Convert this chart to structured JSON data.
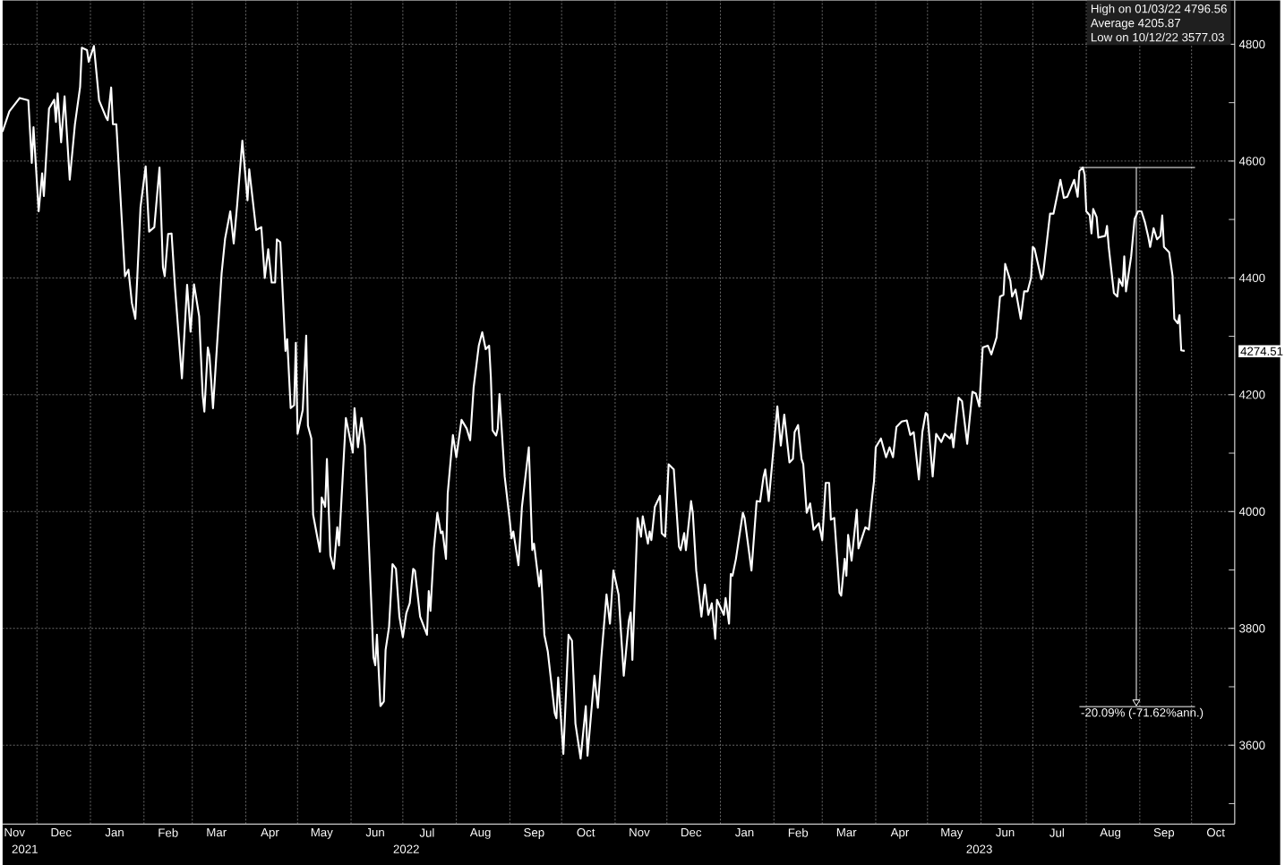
{
  "chart_data": {
    "type": "line",
    "x": [
      "2021-11-11",
      "2021-11-15",
      "2021-11-21",
      "2021-11-26",
      "2021-11-28",
      "2021-11-29",
      "2021-12-02",
      "2021-12-04",
      "2021-12-05",
      "2021-12-08",
      "2021-12-11",
      "2021-12-12",
      "2021-12-13",
      "2021-12-15",
      "2021-12-17",
      "2021-12-20",
      "2021-12-23",
      "2021-12-26",
      "2021-12-27",
      "2021-12-30",
      "2021-12-31",
      "2022-01-03",
      "2022-01-06",
      "2022-01-10",
      "2022-01-11",
      "2022-01-13",
      "2022-01-14",
      "2022-01-16",
      "2022-01-21",
      "2022-01-23",
      "2022-01-25",
      "2022-01-27",
      "2022-01-30",
      "2022-02-02",
      "2022-02-04",
      "2022-02-07",
      "2022-02-10",
      "2022-02-12",
      "2022-02-13",
      "2022-02-15",
      "2022-02-17",
      "2022-02-19",
      "2022-02-23",
      "2022-02-26",
      "2022-02-28",
      "2022-03-02",
      "2022-03-05",
      "2022-03-07",
      "2022-03-08",
      "2022-03-10",
      "2022-03-11",
      "2022-03-13",
      "2022-03-18",
      "2022-03-20",
      "2022-03-23",
      "2022-03-25",
      "2022-03-27",
      "2022-03-30",
      "2022-04-02",
      "2022-04-03",
      "2022-04-07",
      "2022-04-10",
      "2022-04-12",
      "2022-04-14",
      "2022-04-16",
      "2022-04-18",
      "2022-04-19",
      "2022-04-21",
      "2022-04-24",
      "2022-04-25",
      "2022-04-27",
      "2022-04-29",
      "2022-04-30",
      "2022-05-01",
      "2022-05-04",
      "2022-05-06",
      "2022-05-07",
      "2022-05-09",
      "2022-05-10",
      "2022-05-14",
      "2022-05-15",
      "2022-05-17",
      "2022-05-18",
      "2022-05-20",
      "2022-05-22",
      "2022-05-24",
      "2022-05-25",
      "2022-05-29",
      "2022-06-02",
      "2022-06-03",
      "2022-06-05",
      "2022-06-07",
      "2022-06-09",
      "2022-06-14",
      "2022-06-15",
      "2022-06-16",
      "2022-06-18",
      "2022-06-20",
      "2022-06-21",
      "2022-06-23",
      "2022-06-25",
      "2022-06-27",
      "2022-06-29",
      "2022-07-01",
      "2022-07-03",
      "2022-07-05",
      "2022-07-07",
      "2022-07-08",
      "2022-07-11",
      "2022-07-15",
      "2022-07-16",
      "2022-07-17",
      "2022-07-19",
      "2022-07-21",
      "2022-07-23",
      "2022-07-24",
      "2022-07-26",
      "2022-07-27",
      "2022-07-30",
      "2022-08-01",
      "2022-08-04",
      "2022-08-07",
      "2022-08-09",
      "2022-08-11",
      "2022-08-14",
      "2022-08-16",
      "2022-08-18",
      "2022-08-20",
      "2022-08-21",
      "2022-08-22",
      "2022-08-24",
      "2022-08-25",
      "2022-08-26",
      "2022-08-29",
      "2022-09-01",
      "2022-09-02",
      "2022-09-03",
      "2022-09-06",
      "2022-09-08",
      "2022-09-12",
      "2022-09-14",
      "2022-09-15",
      "2022-09-18",
      "2022-09-19",
      "2022-09-21",
      "2022-09-23",
      "2022-09-27",
      "2022-09-28",
      "2022-09-29",
      "2022-10-02",
      "2022-10-05",
      "2022-10-07",
      "2022-10-09",
      "2022-10-12",
      "2022-10-15",
      "2022-10-16",
      "2022-10-20",
      "2022-10-22",
      "2022-10-24",
      "2022-10-27",
      "2022-10-29",
      "2022-10-31",
      "2022-11-03",
      "2022-11-06",
      "2022-11-09",
      "2022-11-10",
      "2022-11-11",
      "2022-11-14",
      "2022-11-16",
      "2022-11-17",
      "2022-11-20",
      "2022-11-21",
      "2022-11-22",
      "2022-11-24",
      "2022-11-27",
      "2022-11-28",
      "2022-11-30",
      "2022-12-02",
      "2022-12-05",
      "2022-12-08",
      "2022-12-09",
      "2022-12-11",
      "2022-12-12",
      "2022-12-15",
      "2022-12-16",
      "2022-12-18",
      "2022-12-21",
      "2022-12-23",
      "2022-12-25",
      "2022-12-27",
      "2022-12-29",
      "2022-12-30",
      "2023-01-03",
      "2023-01-04",
      "2023-01-06",
      "2023-01-07",
      "2023-01-08",
      "2023-01-10",
      "2023-01-14",
      "2023-01-15",
      "2023-01-19",
      "2023-01-22",
      "2023-01-24",
      "2023-01-26",
      "2023-01-27",
      "2023-01-29",
      "2023-02-03",
      "2023-02-05",
      "2023-02-07",
      "2023-02-10",
      "2023-02-12",
      "2023-02-13",
      "2023-02-15",
      "2023-02-17",
      "2023-02-18",
      "2023-02-20",
      "2023-02-22",
      "2023-02-24",
      "2023-02-27",
      "2023-03-01",
      "2023-03-03",
      "2023-03-05",
      "2023-03-06",
      "2023-03-08",
      "2023-03-11",
      "2023-03-12",
      "2023-03-14",
      "2023-03-15",
      "2023-03-16",
      "2023-03-18",
      "2023-03-21",
      "2023-03-22",
      "2023-03-26",
      "2023-03-28",
      "2023-03-30",
      "2023-03-31",
      "2023-04-01",
      "2023-04-04",
      "2023-04-07",
      "2023-04-09",
      "2023-04-11",
      "2023-04-13",
      "2023-04-16",
      "2023-04-19",
      "2023-04-21",
      "2023-04-23",
      "2023-04-26",
      "2023-04-28",
      "2023-04-30",
      "2023-05-01",
      "2023-05-04",
      "2023-05-06",
      "2023-05-09",
      "2023-05-11",
      "2023-05-14",
      "2023-05-15",
      "2023-05-16",
      "2023-05-19",
      "2023-05-21",
      "2023-05-24",
      "2023-05-27",
      "2023-05-29",
      "2023-05-31",
      "2023-06-02",
      "2023-06-05",
      "2023-06-07",
      "2023-06-10",
      "2023-06-12",
      "2023-06-14",
      "2023-06-15",
      "2023-06-18",
      "2023-06-19",
      "2023-06-21",
      "2023-06-24",
      "2023-06-26",
      "2023-06-28",
      "2023-06-30",
      "2023-07-01",
      "2023-07-02",
      "2023-07-06",
      "2023-07-07",
      "2023-07-11",
      "2023-07-13",
      "2023-07-17",
      "2023-07-19",
      "2023-07-21",
      "2023-07-25",
      "2023-07-27",
      "2023-07-28",
      "2023-07-30",
      "2023-07-31",
      "2023-08-01",
      "2023-08-03",
      "2023-08-04",
      "2023-08-05",
      "2023-08-07",
      "2023-08-08",
      "2023-08-12",
      "2023-08-13",
      "2023-08-14",
      "2023-08-17",
      "2023-08-19",
      "2023-08-20",
      "2023-08-22",
      "2023-08-23",
      "2023-08-24",
      "2023-08-27",
      "2023-08-29",
      "2023-08-31",
      "2023-09-02",
      "2023-09-04",
      "2023-09-06",
      "2023-09-07",
      "2023-09-09",
      "2023-09-11",
      "2023-09-13",
      "2023-09-14",
      "2023-09-15",
      "2023-09-18",
      "2023-09-20",
      "2023-09-21",
      "2023-09-23",
      "2023-09-24",
      "2023-09-25",
      "2023-09-27"
    ],
    "values": [
      4650,
      4685,
      4708,
      4704,
      4597,
      4658,
      4514,
      4579,
      4540,
      4690,
      4705,
      4667,
      4716,
      4632,
      4711,
      4568,
      4663,
      4727,
      4794,
      4790,
      4770,
      4797,
      4704,
      4675,
      4670,
      4726,
      4663,
      4663,
      4403,
      4414,
      4357,
      4330,
      4521,
      4591,
      4479,
      4487,
      4589,
      4418,
      4403,
      4475,
      4476,
      4383,
      4228,
      4388,
      4308,
      4389,
      4334,
      4200,
      4171,
      4281,
      4266,
      4177,
      4408,
      4467,
      4514,
      4459,
      4525,
      4635,
      4533,
      4586,
      4482,
      4487,
      4400,
      4449,
      4392,
      4392,
      4466,
      4461,
      4275,
      4295,
      4177,
      4182,
      4289,
      4133,
      4174,
      4301,
      4147,
      4125,
      3995,
      3931,
      4024,
      4008,
      4090,
      3925,
      3902,
      3973,
      3942,
      4160,
      4101,
      4177,
      4110,
      4160,
      4113,
      3750,
      3737,
      3789,
      3667,
      3675,
      3763,
      3802,
      3910,
      3902,
      3820,
      3785,
      3826,
      3843,
      3902,
      3899,
      3820,
      3789,
      3864,
      3830,
      3937,
      3998,
      3963,
      3966,
      3919,
      4031,
      4131,
      4093,
      4157,
      4142,
      4122,
      4212,
      4284,
      4307,
      4278,
      4284,
      4230,
      4139,
      4130,
      4142,
      4201,
      4060,
      3983,
      3954,
      3966,
      3908,
      4008,
      4110,
      3934,
      3945,
      3872,
      3899,
      3789,
      3760,
      3655,
      3646,
      3716,
      3585,
      3789,
      3779,
      3637,
      3577,
      3667,
      3582,
      3719,
      3664,
      3750,
      3858,
      3808,
      3899,
      3858,
      3719,
      3814,
      3827,
      3746,
      3989,
      3957,
      3992,
      3945,
      3966,
      3951,
      4008,
      4027,
      3963,
      3957,
      4081,
      4072,
      3940,
      3934,
      3963,
      3934,
      4018,
      3998,
      3899,
      3820,
      3875,
      3823,
      3843,
      3782,
      3849,
      3823,
      3852,
      3808,
      3893,
      3890,
      3919,
      3998,
      3989,
      3899,
      4018,
      4017,
      4060,
      4072,
      4018,
      4180,
      4113,
      4166,
      4084,
      4090,
      4136,
      4148,
      4090,
      4081,
      3998,
      4014,
      3969,
      3980,
      3951,
      4049,
      4049,
      3986,
      3989,
      3861,
      3856,
      3919,
      3890,
      3960,
      3916,
      4003,
      3937,
      3973,
      3969,
      4027,
      4052,
      4110,
      4125,
      4093,
      4110,
      4093,
      4145,
      4154,
      4156,
      4131,
      4136,
      4055,
      4136,
      4169,
      4166,
      4060,
      4133,
      4119,
      4133,
      4125,
      4133,
      4110,
      4195,
      4189,
      4116,
      4205,
      4202,
      4180,
      4281,
      4284,
      4269,
      4298,
      4368,
      4371,
      4424,
      4395,
      4368,
      4380,
      4330,
      4377,
      4377,
      4400,
      4453,
      4450,
      4398,
      4406,
      4510,
      4510,
      4568,
      4537,
      4539,
      4568,
      4539,
      4583,
      4589,
      4577,
      4514,
      4507,
      4476,
      4518,
      4504,
      4469,
      4472,
      4489,
      4453,
      4374,
      4368,
      4398,
      4386,
      4437,
      4377,
      4437,
      4501,
      4514,
      4514,
      4495,
      4469,
      4453,
      4485,
      4466,
      4472,
      4507,
      4453,
      4444,
      4403,
      4330,
      4322,
      4336,
      4276,
      4275
    ],
    "color": "#ffffff",
    "xlim": [
      "2021-11-11",
      "2023-10-26"
    ],
    "xticks": [
      {
        "value": "2021-11-18",
        "label": "Nov"
      },
      {
        "value": "2021-12-15",
        "label": "Dec"
      },
      {
        "value": "2022-01-15",
        "label": "Jan"
      },
      {
        "value": "2022-02-15",
        "label": "Feb"
      },
      {
        "value": "2022-03-15",
        "label": "Mar"
      },
      {
        "value": "2022-04-15",
        "label": "Apr"
      },
      {
        "value": "2022-05-15",
        "label": "May"
      },
      {
        "value": "2022-06-15",
        "label": "Jun"
      },
      {
        "value": "2022-07-15",
        "label": "Jul"
      },
      {
        "value": "2022-08-15",
        "label": "Aug"
      },
      {
        "value": "2022-09-15",
        "label": "Sep"
      },
      {
        "value": "2022-10-15",
        "label": "Oct"
      },
      {
        "value": "2022-11-15",
        "label": "Nov"
      },
      {
        "value": "2022-12-15",
        "label": "Dec"
      },
      {
        "value": "2023-01-15",
        "label": "Jan"
      },
      {
        "value": "2023-02-15",
        "label": "Feb"
      },
      {
        "value": "2023-03-15",
        "label": "Mar"
      },
      {
        "value": "2023-04-15",
        "label": "Apr"
      },
      {
        "value": "2023-05-15",
        "label": "May"
      },
      {
        "value": "2023-06-15",
        "label": "Jun"
      },
      {
        "value": "2023-07-15",
        "label": "Jul"
      },
      {
        "value": "2023-08-15",
        "label": "Aug"
      },
      {
        "value": "2023-09-15",
        "label": "Sep"
      },
      {
        "value": "2023-10-15",
        "label": "Oct"
      },
      {
        "value": "2021-12-01",
        "label": null
      },
      {
        "value": "2022-01-01",
        "label": null
      },
      {
        "value": "2022-02-01",
        "label": null
      },
      {
        "value": "2022-03-01",
        "label": null
      },
      {
        "value": "2022-04-01",
        "label": null
      },
      {
        "value": "2022-05-01",
        "label": null
      },
      {
        "value": "2022-06-01",
        "label": null
      },
      {
        "value": "2022-07-01",
        "label": null
      },
      {
        "value": "2022-08-01",
        "label": null
      },
      {
        "value": "2022-09-01",
        "label": null
      },
      {
        "value": "2022-10-01",
        "label": null
      },
      {
        "value": "2022-11-01",
        "label": null
      },
      {
        "value": "2022-12-01",
        "label": null
      },
      {
        "value": "2023-01-01",
        "label": null
      },
      {
        "value": "2023-02-01",
        "label": null
      },
      {
        "value": "2023-03-01",
        "label": null
      },
      {
        "value": "2023-04-01",
        "label": null
      },
      {
        "value": "2023-05-01",
        "label": null
      },
      {
        "value": "2023-06-01",
        "label": null
      },
      {
        "value": "2023-07-01",
        "label": null
      },
      {
        "value": "2023-08-01",
        "label": null
      },
      {
        "value": "2023-09-01",
        "label": null
      },
      {
        "value": "2023-10-01",
        "label": null
      }
    ],
    "ylim": [
      3465,
      4875
    ],
    "yticks": [
      {
        "value": 4274.51,
        "label": "4274.51"
      },
      3600,
      3800,
      4000,
      4200,
      4400,
      4600,
      4800,
      {
        "value": 3500,
        "label": null
      },
      {
        "value": 3700,
        "label": null
      },
      {
        "value": 3900,
        "label": null
      },
      {
        "value": 4100,
        "label": null
      },
      {
        "value": 4300,
        "label": null
      },
      {
        "value": 4500,
        "label": null
      },
      {
        "value": 4700,
        "label": null
      }
    ],
    "x2lim": [
      "2021-11-11",
      "2023-10-26"
    ],
    "x2ticks": [
      {
        "value": "2021-11-24",
        "label": "2021"
      },
      {
        "value": "2022-07-03",
        "label": "2022"
      },
      {
        "value": "2023-05-31",
        "label": "2023"
      }
    ],
    "ref_lines": [
      {
        "axis": "y",
        "value": 4589
      },
      {
        "axis": "y",
        "value": 3666,
        "label": "-20.09% (-71.62%ann.)"
      }
    ],
    "grid": true,
    "annotations": [
      "High on 01/03/22 4796.56",
      "Average 4205.87",
      "Low on 10/12/22 3577.03"
    ]
  }
}
